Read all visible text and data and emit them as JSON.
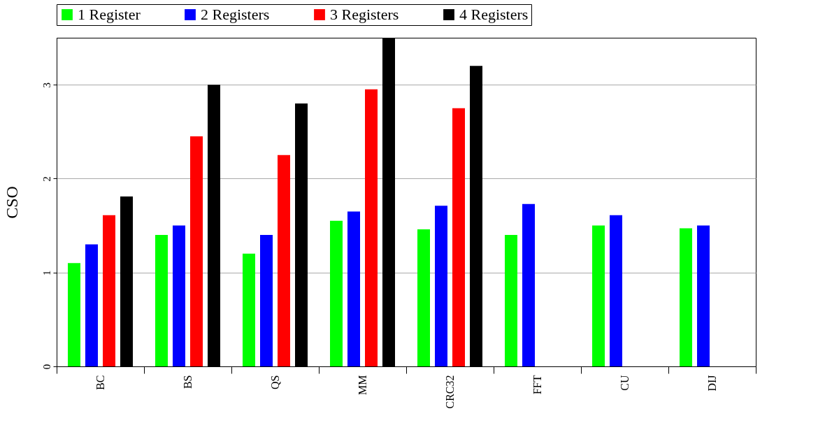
{
  "chart_data": {
    "type": "bar",
    "ylabel": "CSO",
    "categories": [
      "BC",
      "BS",
      "QS",
      "MM",
      "CRC32",
      "FFT",
      "CU",
      "DIJ"
    ],
    "series": [
      {
        "name": "1 Register",
        "color": "#00ff00",
        "values": [
          1.1,
          1.4,
          1.2,
          1.55,
          1.46,
          1.4,
          1.5,
          1.47
        ]
      },
      {
        "name": "2 Registers",
        "color": "#0000ff",
        "values": [
          1.3,
          1.5,
          1.4,
          1.65,
          1.71,
          1.73,
          1.61,
          1.5
        ]
      },
      {
        "name": "3 Registers",
        "color": "#ff0000",
        "values": [
          1.61,
          2.45,
          2.25,
          2.95,
          2.75,
          null,
          null,
          null
        ]
      },
      {
        "name": "4 Registers",
        "color": "#000000",
        "values": [
          1.81,
          3.0,
          2.8,
          3.5,
          3.2,
          null,
          null,
          null
        ]
      }
    ],
    "ylim": [
      0,
      3.5
    ],
    "yticks": [
      0,
      1,
      2,
      3
    ],
    "grid": "y",
    "legend": "top"
  }
}
